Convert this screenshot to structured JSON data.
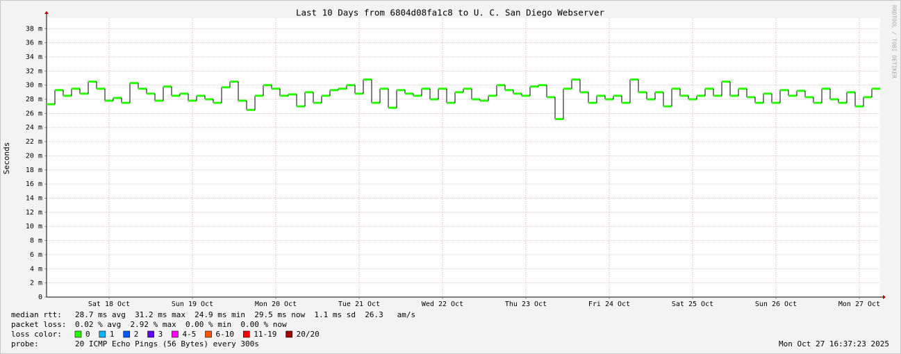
{
  "chart_data": {
    "type": "step",
    "title": "Last 10 Days from 6804d08fa1c8 to U. C. San Diego Webserver",
    "ylabel": "Seconds",
    "watermark": "RRDTOOL / TOBI OETIKER",
    "xlim": [
      0,
      10
    ],
    "xticks": [
      {
        "value": 0.75,
        "label": "Sat 18 Oct"
      },
      {
        "value": 1.75,
        "label": "Sun 19 Oct"
      },
      {
        "value": 2.75,
        "label": "Mon 20 Oct"
      },
      {
        "value": 3.75,
        "label": "Tue 21 Oct"
      },
      {
        "value": 4.75,
        "label": "Wed 22 Oct"
      },
      {
        "value": 5.75,
        "label": "Thu 23 Oct"
      },
      {
        "value": 6.75,
        "label": "Fri 24 Oct"
      },
      {
        "value": 7.75,
        "label": "Sat 25 Oct"
      },
      {
        "value": 8.75,
        "label": "Sun 26 Oct"
      },
      {
        "value": 9.75,
        "label": "Mon 27 Oct"
      }
    ],
    "ylim": [
      0,
      0.0395
    ],
    "yticks": [
      0,
      {
        "value": 0.002,
        "label": "2 m"
      },
      {
        "value": 0.004,
        "label": "4 m"
      },
      {
        "value": 0.006,
        "label": "6 m"
      },
      {
        "value": 0.008,
        "label": "8 m"
      },
      {
        "value": 0.01,
        "label": "10 m"
      },
      {
        "value": 0.012,
        "label": "12 m"
      },
      {
        "value": 0.014,
        "label": "14 m"
      },
      {
        "value": 0.016,
        "label": "16 m"
      },
      {
        "value": 0.018,
        "label": "18 m"
      },
      {
        "value": 0.02,
        "label": "20 m"
      },
      {
        "value": 0.022,
        "label": "22 m"
      },
      {
        "value": 0.024,
        "label": "24 m"
      },
      {
        "value": 0.026,
        "label": "26 m"
      },
      {
        "value": 0.028,
        "label": "28 m"
      },
      {
        "value": 0.03,
        "label": "30 m"
      },
      {
        "value": 0.032,
        "label": "32 m"
      },
      {
        "value": 0.034,
        "label": "34 m"
      },
      {
        "value": 0.036,
        "label": "36 m"
      },
      {
        "value": 0.038,
        "label": "38 m"
      }
    ],
    "grid": true,
    "color": "#26ff00",
    "x": [
      0,
      0.1,
      0.2,
      0.3,
      0.4,
      0.5,
      0.6,
      0.7,
      0.8,
      0.9,
      1,
      1.1,
      1.2,
      1.3,
      1.4,
      1.5,
      1.6,
      1.7,
      1.8,
      1.9,
      2,
      2.1,
      2.2,
      2.3,
      2.4,
      2.5,
      2.6,
      2.7,
      2.8,
      2.9,
      3,
      3.1,
      3.2,
      3.3,
      3.4,
      3.5,
      3.6,
      3.7,
      3.8,
      3.9,
      4,
      4.1,
      4.2,
      4.3,
      4.4,
      4.5,
      4.6,
      4.7,
      4.8,
      4.9,
      5,
      5.1,
      5.2,
      5.3,
      5.4,
      5.5,
      5.6,
      5.7,
      5.8,
      5.9,
      6,
      6.1,
      6.2,
      6.3,
      6.4,
      6.5,
      6.6,
      6.7,
      6.8,
      6.9,
      7,
      7.1,
      7.2,
      7.3,
      7.4,
      7.5,
      7.6,
      7.7,
      7.8,
      7.9,
      8,
      8.1,
      8.2,
      8.3,
      8.4,
      8.5,
      8.6,
      8.7,
      8.8,
      8.9,
      9,
      9.1,
      9.2,
      9.3,
      9.4,
      9.5,
      9.6,
      9.7,
      9.8,
      9.9
    ],
    "values": [
      0.0273,
      0.0293,
      0.0285,
      0.0295,
      0.0288,
      0.0305,
      0.0295,
      0.0278,
      0.0282,
      0.0275,
      0.0303,
      0.0295,
      0.0288,
      0.0278,
      0.0298,
      0.0285,
      0.0288,
      0.0278,
      0.0285,
      0.028,
      0.0275,
      0.0297,
      0.0305,
      0.0278,
      0.0265,
      0.0285,
      0.03,
      0.0295,
      0.0285,
      0.0287,
      0.027,
      0.029,
      0.0275,
      0.0285,
      0.0293,
      0.0295,
      0.03,
      0.0288,
      0.0308,
      0.0275,
      0.0295,
      0.0268,
      0.0293,
      0.0288,
      0.0285,
      0.0295,
      0.028,
      0.0295,
      0.0275,
      0.029,
      0.0295,
      0.028,
      0.0278,
      0.0285,
      0.03,
      0.0293,
      0.0288,
      0.0285,
      0.0298,
      0.03,
      0.0283,
      0.0252,
      0.0295,
      0.0308,
      0.029,
      0.0275,
      0.0285,
      0.028,
      0.0285,
      0.0275,
      0.0308,
      0.029,
      0.028,
      0.029,
      0.027,
      0.0295,
      0.0285,
      0.028,
      0.0285,
      0.0295,
      0.0285,
      0.0305,
      0.0285,
      0.0295,
      0.0283,
      0.0275,
      0.0288,
      0.0275,
      0.0293,
      0.0285,
      0.0292,
      0.0283,
      0.0275,
      0.0295,
      0.028,
      0.0275,
      0.029,
      0.027,
      0.0283,
      0.0295
    ],
    "legend_rows": [
      {
        "label": "median rtt:",
        "text": "28.7 ms avg  31.2 ms max  24.9 ms min  29.5 ms now  1.1 ms sd  26.3   am/s"
      },
      {
        "label": "packet loss:",
        "text": "0.02 % avg  2.92 % max  0.00 % min  0.00 % now"
      }
    ],
    "loss_color_label": "loss color:",
    "loss_colors": [
      {
        "name": "0",
        "color": "#26ff00"
      },
      {
        "name": "1",
        "color": "#00b8ff"
      },
      {
        "name": "2",
        "color": "#0059ff"
      },
      {
        "name": "3",
        "color": "#5e00ff"
      },
      {
        "name": "4-5",
        "color": "#ff00ff"
      },
      {
        "name": "6-10",
        "color": "#ff5500"
      },
      {
        "name": "11-19",
        "color": "#ff0000"
      },
      {
        "name": "20/20",
        "color": "#a10000"
      }
    ],
    "probe_label": "probe:",
    "probe": "20 ICMP Echo Pings (56 Bytes) every 300s",
    "timestamp": "Mon Oct 27 16:37:23 2025"
  }
}
